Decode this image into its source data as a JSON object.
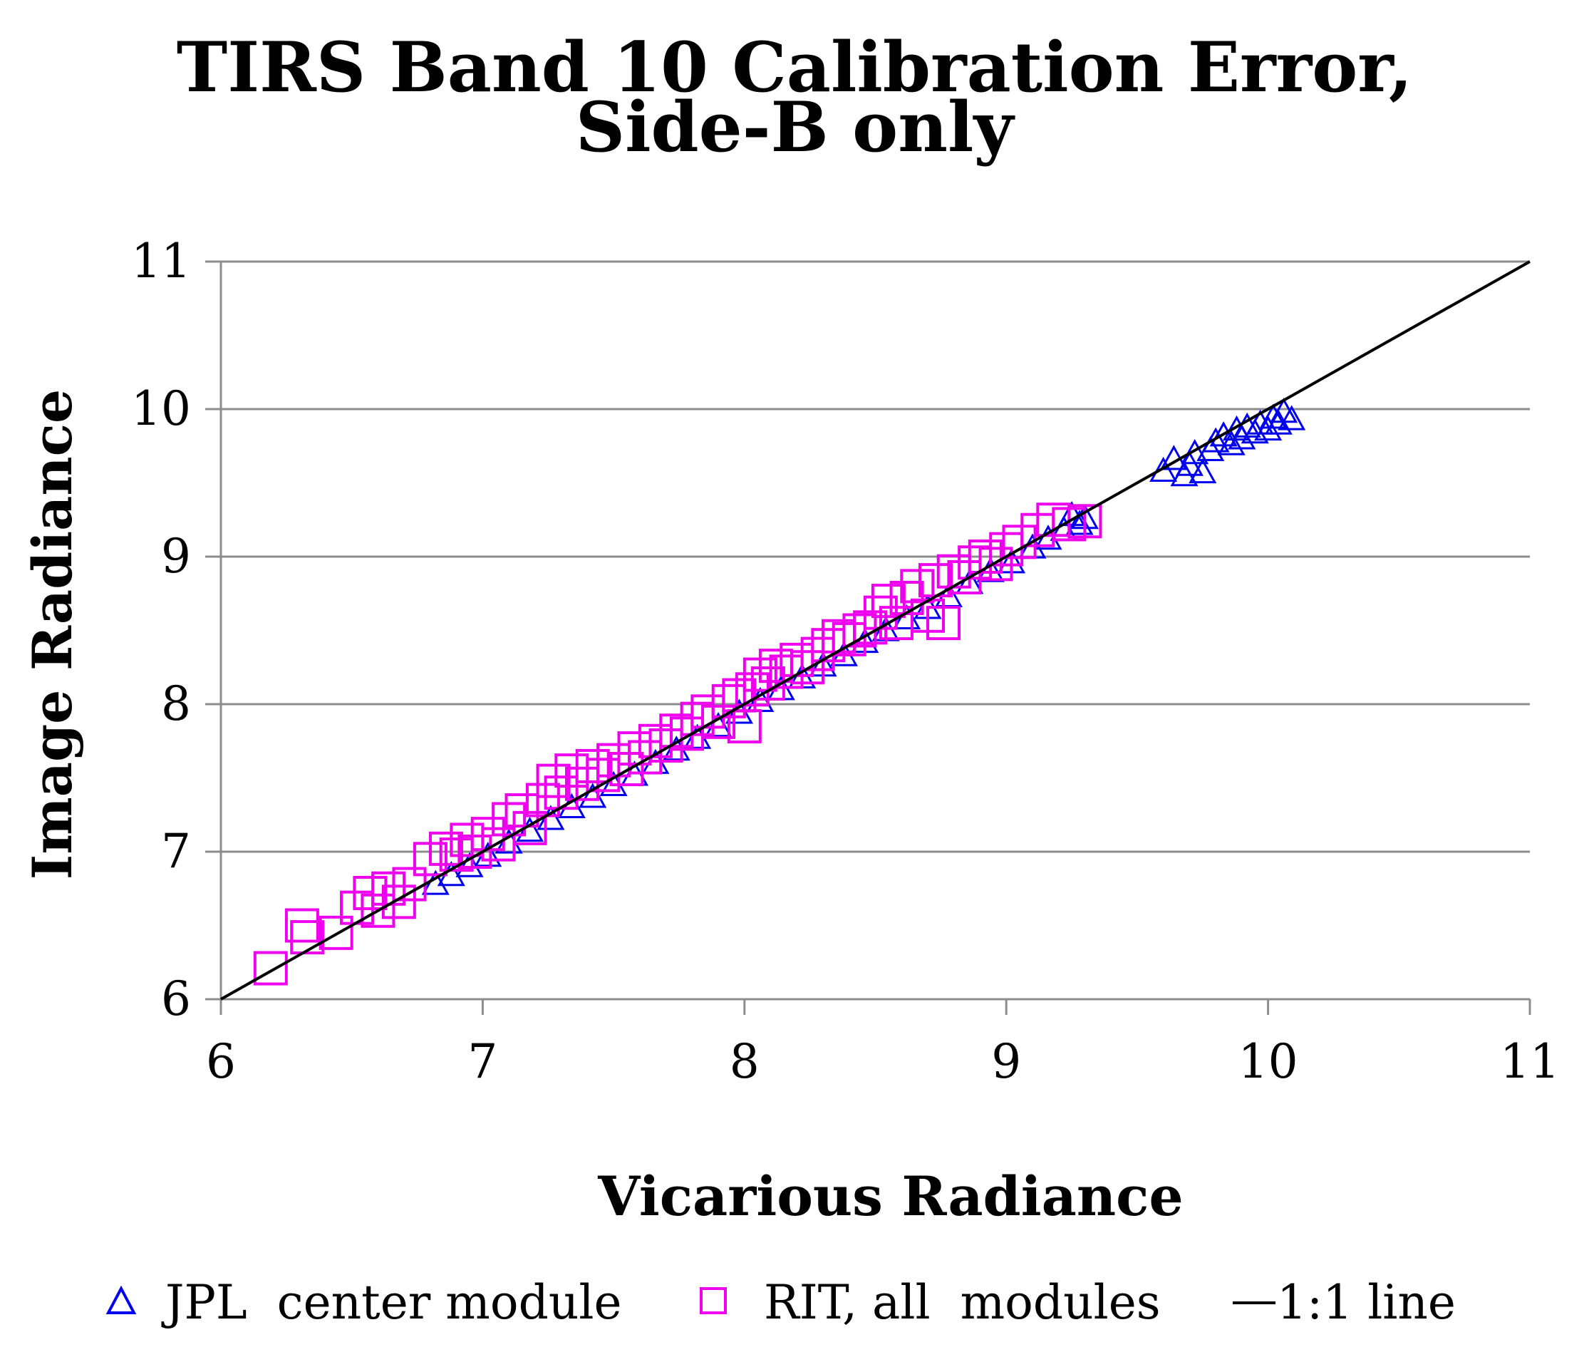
{
  "chart_data": {
    "type": "scatter",
    "title_line1": "TIRS Band 10 Calibration Error,",
    "title_line2": "Side-B only",
    "xlabel": "Vicarious Radiance",
    "ylabel": "Image Radiance",
    "xlim": [
      6,
      11
    ],
    "ylim": [
      6,
      11
    ],
    "x_ticks": [
      "6",
      "7",
      "8",
      "9",
      "10",
      "11"
    ],
    "y_ticks": [
      "6",
      "7",
      "8",
      "9",
      "10",
      "11"
    ],
    "grid": "horizontal",
    "legend_position": "bottom",
    "series": [
      {
        "name": "JPL  center module",
        "marker": "triangle-open",
        "color": "#0000ee",
        "points": [
          [
            6.82,
            6.78
          ],
          [
            6.88,
            6.84
          ],
          [
            6.95,
            6.9
          ],
          [
            7.02,
            6.97
          ],
          [
            7.1,
            7.06
          ],
          [
            7.18,
            7.14
          ],
          [
            7.26,
            7.22
          ],
          [
            7.34,
            7.3
          ],
          [
            7.42,
            7.37
          ],
          [
            7.5,
            7.45
          ],
          [
            7.58,
            7.52
          ],
          [
            7.66,
            7.6
          ],
          [
            7.74,
            7.69
          ],
          [
            7.82,
            7.77
          ],
          [
            7.9,
            7.85
          ],
          [
            7.98,
            7.94
          ],
          [
            8.06,
            8.02
          ],
          [
            8.14,
            8.1
          ],
          [
            8.22,
            8.18
          ],
          [
            8.3,
            8.26
          ],
          [
            8.38,
            8.33
          ],
          [
            8.46,
            8.42
          ],
          [
            8.54,
            8.5
          ],
          [
            8.62,
            8.58
          ],
          [
            8.7,
            8.65
          ],
          [
            8.78,
            8.73
          ],
          [
            8.86,
            8.82
          ],
          [
            8.94,
            8.9
          ],
          [
            9.02,
            8.96
          ],
          [
            9.1,
            9.06
          ],
          [
            9.16,
            9.12
          ],
          [
            9.22,
            9.18
          ],
          [
            9.28,
            9.22
          ],
          [
            9.3,
            9.26
          ],
          [
            9.25,
            9.28
          ],
          [
            9.6,
            9.58
          ],
          [
            9.64,
            9.66
          ],
          [
            9.68,
            9.55
          ],
          [
            9.7,
            9.62
          ],
          [
            9.72,
            9.7
          ],
          [
            9.75,
            9.57
          ],
          [
            9.78,
            9.72
          ],
          [
            9.8,
            9.78
          ],
          [
            9.83,
            9.82
          ],
          [
            9.86,
            9.76
          ],
          [
            9.88,
            9.86
          ],
          [
            9.9,
            9.8
          ],
          [
            9.92,
            9.88
          ],
          [
            9.95,
            9.84
          ],
          [
            9.97,
            9.9
          ],
          [
            10.0,
            9.86
          ],
          [
            10.02,
            9.94
          ],
          [
            10.04,
            9.9
          ],
          [
            10.06,
            9.98
          ],
          [
            10.09,
            9.93
          ]
        ]
      },
      {
        "name": "RIT, all  modules",
        "marker": "square-open",
        "color": "#ee00ee",
        "points": [
          [
            6.19,
            6.21
          ],
          [
            6.31,
            6.5
          ],
          [
            6.33,
            6.42
          ],
          [
            6.44,
            6.45
          ],
          [
            6.52,
            6.62
          ],
          [
            6.57,
            6.72
          ],
          [
            6.6,
            6.6
          ],
          [
            6.64,
            6.75
          ],
          [
            6.68,
            6.66
          ],
          [
            6.72,
            6.78
          ],
          [
            6.8,
            6.95
          ],
          [
            6.86,
            7.02
          ],
          [
            6.9,
            6.98
          ],
          [
            6.94,
            7.08
          ],
          [
            6.97,
            7.0
          ],
          [
            7.02,
            7.12
          ],
          [
            7.06,
            7.05
          ],
          [
            7.1,
            7.22
          ],
          [
            7.15,
            7.28
          ],
          [
            7.18,
            7.16
          ],
          [
            7.23,
            7.35
          ],
          [
            7.27,
            7.48
          ],
          [
            7.3,
            7.4
          ],
          [
            7.34,
            7.55
          ],
          [
            7.38,
            7.46
          ],
          [
            7.42,
            7.58
          ],
          [
            7.46,
            7.52
          ],
          [
            7.5,
            7.62
          ],
          [
            7.55,
            7.56
          ],
          [
            7.58,
            7.7
          ],
          [
            7.62,
            7.64
          ],
          [
            7.66,
            7.75
          ],
          [
            7.7,
            7.72
          ],
          [
            7.74,
            7.82
          ],
          [
            7.78,
            7.8
          ],
          [
            7.82,
            7.9
          ],
          [
            7.86,
            7.95
          ],
          [
            7.9,
            7.88
          ],
          [
            7.94,
            8.02
          ],
          [
            7.98,
            8.06
          ],
          [
            8.0,
            7.85
          ],
          [
            8.03,
            8.1
          ],
          [
            8.06,
            8.2
          ],
          [
            8.09,
            8.14
          ],
          [
            8.12,
            8.26
          ],
          [
            8.16,
            8.22
          ],
          [
            8.2,
            8.3
          ],
          [
            8.24,
            8.25
          ],
          [
            8.28,
            8.34
          ],
          [
            8.32,
            8.4
          ],
          [
            8.36,
            8.46
          ],
          [
            8.4,
            8.44
          ],
          [
            8.44,
            8.5
          ],
          [
            8.48,
            8.52
          ],
          [
            8.52,
            8.62
          ],
          [
            8.55,
            8.7
          ],
          [
            8.58,
            8.55
          ],
          [
            8.62,
            8.72
          ],
          [
            8.66,
            8.8
          ],
          [
            8.7,
            8.6
          ],
          [
            8.73,
            8.84
          ],
          [
            8.76,
            8.55
          ],
          [
            8.8,
            8.9
          ],
          [
            8.84,
            8.86
          ],
          [
            8.88,
            8.96
          ],
          [
            8.92,
            9.0
          ],
          [
            8.96,
            8.95
          ],
          [
            9.0,
            9.05
          ],
          [
            9.05,
            9.1
          ],
          [
            9.12,
            9.18
          ],
          [
            9.18,
            9.25
          ],
          [
            9.24,
            9.22
          ],
          [
            9.3,
            9.24
          ]
        ]
      },
      {
        "name": "1:1 line",
        "marker": "line",
        "color": "#000000",
        "points": [
          [
            6,
            6
          ],
          [
            11,
            11
          ]
        ]
      }
    ]
  }
}
